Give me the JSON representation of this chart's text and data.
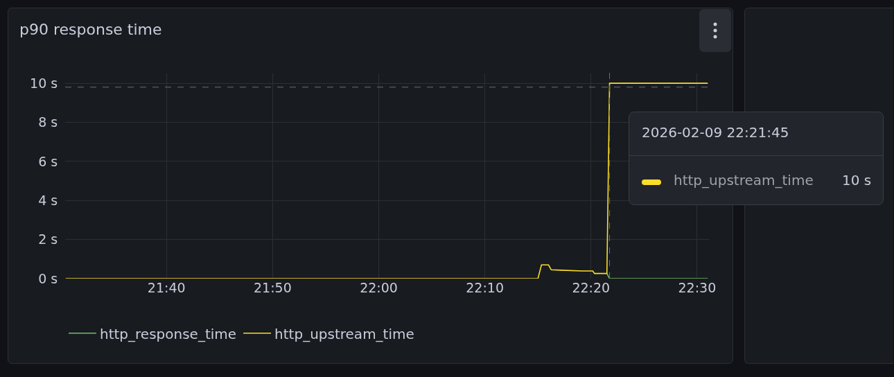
{
  "chart_data": {
    "type": "line",
    "title": "p90 response time",
    "x": [
      "2026-02-09T21:30:30",
      "2026-02-09T22:15:00",
      "2026-02-09T22:15:20",
      "2026-02-09T22:16:00",
      "2026-02-09T22:16:15",
      "2026-02-09T22:17:10",
      "2026-02-09T22:19:10",
      "2026-02-09T22:20:10",
      "2026-02-09T22:20:20",
      "2026-02-09T22:21:30",
      "2026-02-09T22:21:45",
      "2026-02-09T22:31:00"
    ],
    "series": [
      {
        "name": "http_response_time",
        "color": "#73bf69",
        "values": [
          null,
          null,
          null,
          null,
          null,
          null,
          null,
          null,
          null,
          0.26,
          0,
          0
        ]
      },
      {
        "name": "http_upstream_time",
        "color": "#fade2a",
        "values": [
          0,
          0,
          0.7,
          0.7,
          0.45,
          0.43,
          0.39,
          0.39,
          0.26,
          0.26,
          10,
          10
        ]
      }
    ],
    "xlim": [
      "2026-02-09T21:30:27",
      "2026-02-09T22:31:07"
    ],
    "xticks": [
      {
        "value": "2026-02-09T21:40",
        "label": "21:40"
      },
      {
        "value": "2026-02-09T21:50",
        "label": "21:50"
      },
      {
        "value": "2026-02-09T22:00",
        "label": "22:00"
      },
      {
        "value": "2026-02-09T22:10",
        "label": "22:10"
      },
      {
        "value": "2026-02-09T22:20",
        "label": "22:20"
      },
      {
        "value": "2026-02-09T22:30",
        "label": "22:30"
      }
    ],
    "ylim": [
      0,
      10.5
    ],
    "yticks": [
      {
        "value": 0,
        "label": "0 s"
      },
      {
        "value": 2,
        "label": "2 s"
      },
      {
        "value": 4,
        "label": "4 s"
      },
      {
        "value": 6,
        "label": "6 s"
      },
      {
        "value": 8,
        "label": "8 s"
      },
      {
        "value": 10,
        "label": "10 s"
      }
    ],
    "ref_lines": [
      {
        "axis": "x",
        "value": "2026-02-09T22:21:45",
        "label": null,
        "color": "#6e6f78",
        "line_style": "dashed"
      },
      {
        "axis": "y",
        "value": 9.8,
        "label": null,
        "color": "#6e6f78",
        "line_style": "dashed"
      }
    ],
    "annotations": [
      "2026-02-09 22:21:45",
      "http_upstream_time",
      "10 s"
    ],
    "grid": true,
    "legend": "bottom left",
    "marker": "none",
    "line_style": "solid"
  }
}
